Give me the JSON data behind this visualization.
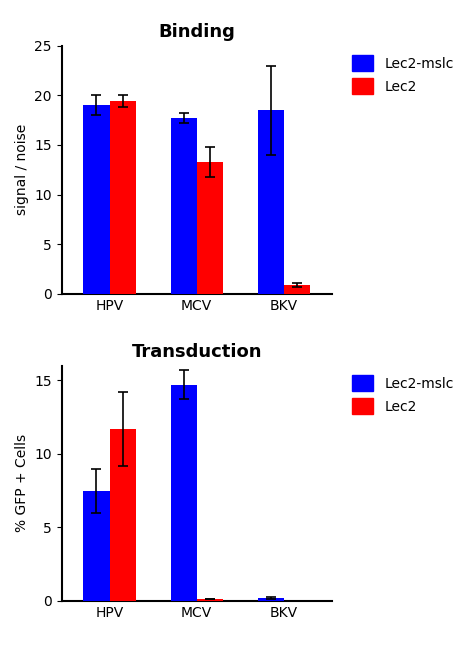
{
  "binding": {
    "title": "Binding",
    "ylabel": "signal / noise",
    "categories": [
      "HPV",
      "MCV",
      "BKV"
    ],
    "blue_values": [
      19.0,
      17.7,
      18.5
    ],
    "red_values": [
      19.4,
      13.3,
      0.9
    ],
    "blue_errors": [
      1.0,
      0.5,
      4.5
    ],
    "red_errors": [
      0.6,
      1.5,
      0.2
    ],
    "ylim": [
      0,
      25
    ],
    "yticks": [
      0,
      5,
      10,
      15,
      20,
      25
    ]
  },
  "transduction": {
    "title": "Transduction",
    "ylabel": "% GFP + Cells",
    "categories": [
      "HPV",
      "MCV",
      "BKV"
    ],
    "blue_values": [
      7.5,
      14.7,
      0.2
    ],
    "red_values": [
      11.7,
      0.15,
      0.0
    ],
    "blue_errors": [
      1.5,
      1.0,
      0.07
    ],
    "red_errors": [
      2.5,
      0.0,
      0.0
    ],
    "ylim": [
      0,
      16
    ],
    "yticks": [
      0,
      5,
      10,
      15
    ]
  },
  "blue_color": "#0000FF",
  "red_color": "#FF0000",
  "bar_width": 0.3,
  "legend_labels": [
    "Lec2-mslc",
    "Lec2"
  ],
  "background_color": "#ffffff",
  "title_fontsize": 13,
  "label_fontsize": 10,
  "tick_fontsize": 10,
  "legend_fontsize": 10
}
